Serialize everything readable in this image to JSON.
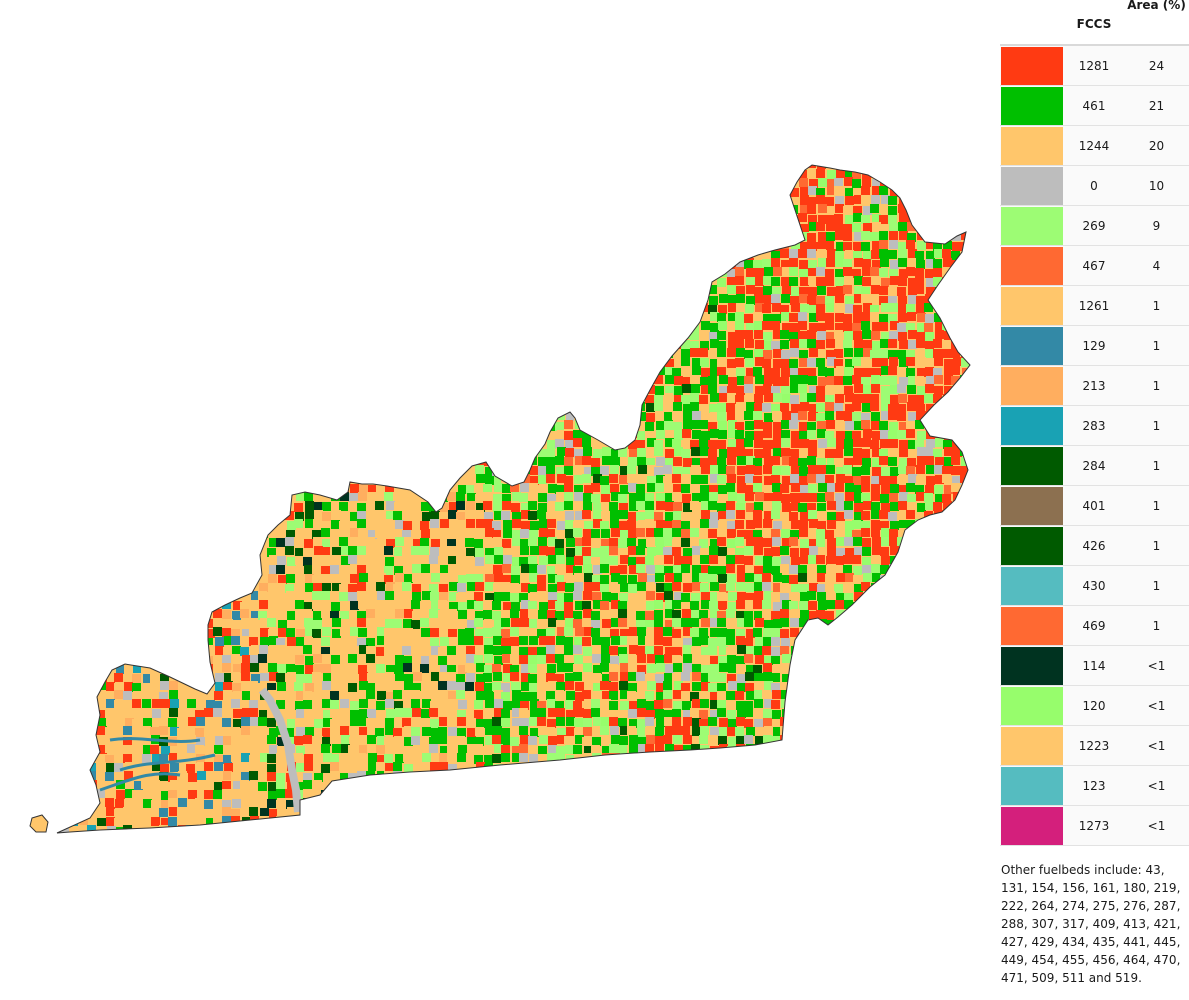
{
  "legend": {
    "header_fccs": "FCCS",
    "header_area": "Area (%)",
    "rows": [
      {
        "code": "1281",
        "area": "24",
        "color": "#ff3a12"
      },
      {
        "code": "461",
        "area": "21",
        "color": "#00bf00"
      },
      {
        "code": "1244",
        "area": "20",
        "color": "#ffc66b"
      },
      {
        "code": "0",
        "area": "10",
        "color": "#bdbdbd"
      },
      {
        "code": "269",
        "area": "9",
        "color": "#9dfc74"
      },
      {
        "code": "467",
        "area": "4",
        "color": "#ff6932"
      },
      {
        "code": "1261",
        "area": "1",
        "color": "#ffc66b"
      },
      {
        "code": "129",
        "area": "1",
        "color": "#3389a6"
      },
      {
        "code": "213",
        "area": "1",
        "color": "#ffae5f"
      },
      {
        "code": "283",
        "area": "1",
        "color": "#19a2b4"
      },
      {
        "code": "284",
        "area": "1",
        "color": "#005a00"
      },
      {
        "code": "401",
        "area": "1",
        "color": "#8c7050"
      },
      {
        "code": "426",
        "area": "1",
        "color": "#005a00"
      },
      {
        "code": "430",
        "area": "1",
        "color": "#55bcc0"
      },
      {
        "code": "469",
        "area": "1",
        "color": "#ff6932"
      },
      {
        "code": "114",
        "area": "<1",
        "color": "#003320"
      },
      {
        "code": "120",
        "area": "<1",
        "color": "#97fd6c"
      },
      {
        "code": "1223",
        "area": "<1",
        "color": "#ffc66b"
      },
      {
        "code": "123",
        "area": "<1",
        "color": "#55bcc0"
      },
      {
        "code": "1273",
        "area": "<1",
        "color": "#d41f7c"
      }
    ],
    "other_note": "Other fuelbeds include: 43, 131, 154, 156, 161, 180, 219, 222, 264, 274, 275, 276, 287, 288, 307, 317, 409, 413, 421, 427, 429, 434, 435, 441, 445, 449, 454, 455, 456, 464, 470, 471, 509, 511 and 519."
  },
  "map": {
    "outline_color": "#333333"
  }
}
